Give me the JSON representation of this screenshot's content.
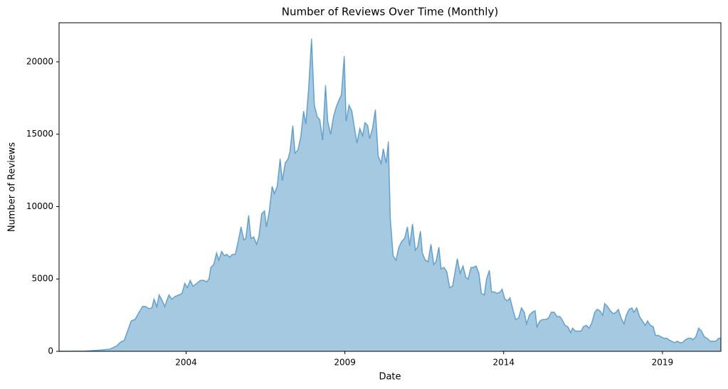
{
  "chart_data": {
    "type": "area",
    "title": "Number of Reviews Over Time (Monthly)",
    "x_label": "Date",
    "y_label": "Number of Reviews",
    "color": "#1f77b4",
    "x": [
      2000.0,
      2000.82,
      2001.26,
      2001.6,
      2001.83,
      2001.94,
      2002.05,
      2002.27,
      2002.39,
      2002.52,
      2002.63,
      2002.72,
      2002.83,
      2002.92,
      2002.99,
      2003.08,
      2003.15,
      2003.24,
      2003.33,
      2003.39,
      2003.46,
      2003.55,
      2003.66,
      2003.78,
      2003.87,
      2003.96,
      2004.04,
      2004.13,
      2004.22,
      2004.34,
      2004.45,
      2004.56,
      2004.65,
      2004.72,
      2004.78,
      2004.87,
      2004.96,
      2005.03,
      2005.12,
      2005.21,
      2005.28,
      2005.37,
      2005.46,
      2005.55,
      2005.64,
      2005.73,
      2005.82,
      2005.88,
      2005.97,
      2006.04,
      2006.13,
      2006.22,
      2006.29,
      2006.38,
      2006.47,
      2006.53,
      2006.62,
      2006.71,
      2006.78,
      2006.87,
      2006.96,
      2007.03,
      2007.12,
      2007.21,
      2007.27,
      2007.36,
      2007.43,
      2007.52,
      2007.61,
      2007.7,
      2007.77,
      2007.86,
      2007.95,
      2008.04,
      2008.13,
      2008.21,
      2008.3,
      2008.39,
      2008.46,
      2008.55,
      2008.64,
      2008.73,
      2008.82,
      2008.89,
      2008.98,
      2009.04,
      2009.13,
      2009.22,
      2009.29,
      2009.38,
      2009.47,
      2009.56,
      2009.63,
      2009.72,
      2009.78,
      2009.87,
      2009.96,
      2010.05,
      2010.14,
      2010.21,
      2010.3,
      2010.37,
      2010.43,
      2010.52,
      2010.61,
      2010.7,
      2010.79,
      2010.88,
      2010.97,
      2011.04,
      2011.13,
      2011.22,
      2011.29,
      2011.38,
      2011.44,
      2011.53,
      2011.62,
      2011.71,
      2011.8,
      2011.87,
      2011.96,
      2012.03,
      2012.12,
      2012.21,
      2012.3,
      2012.39,
      2012.47,
      2012.54,
      2012.63,
      2012.72,
      2012.81,
      2012.88,
      2012.97,
      2013.06,
      2013.13,
      2013.22,
      2013.3,
      2013.39,
      2013.46,
      2013.55,
      2013.62,
      2013.71,
      2013.8,
      2013.89,
      2013.95,
      2014.04,
      2014.13,
      2014.2,
      2014.29,
      2014.38,
      2014.47,
      2014.56,
      2014.65,
      2014.72,
      2014.81,
      2014.9,
      2014.99,
      2015.05,
      2015.14,
      2015.23,
      2015.32,
      2015.41,
      2015.5,
      2015.59,
      2015.68,
      2015.77,
      2015.84,
      2015.93,
      2016.02,
      2016.11,
      2016.17,
      2016.26,
      2016.35,
      2016.44,
      2016.51,
      2016.6,
      2016.69,
      2016.78,
      2016.87,
      2016.94,
      2017.03,
      2017.12,
      2017.18,
      2017.27,
      2017.36,
      2017.45,
      2017.54,
      2017.61,
      2017.7,
      2017.79,
      2017.86,
      2017.95,
      2018.04,
      2018.1,
      2018.19,
      2018.28,
      2018.37,
      2018.46,
      2018.53,
      2018.62,
      2018.71,
      2018.78,
      2018.87,
      2018.96,
      2019.05,
      2019.14,
      2019.2,
      2019.29,
      2019.38,
      2019.47,
      2019.54,
      2019.63,
      2019.72,
      2019.81,
      2019.9,
      2019.96,
      2020.05,
      2020.14,
      2020.23,
      2020.32,
      2020.41,
      2020.5,
      2020.59,
      2020.68,
      2020.77,
      2020.83
    ],
    "values": [
      0,
      20,
      80,
      150,
      400,
      650,
      750,
      2100,
      2200,
      2700,
      3100,
      3100,
      2950,
      3000,
      3600,
      3100,
      3900,
      3550,
      3100,
      3500,
      3900,
      3600,
      3800,
      3900,
      4000,
      4700,
      4400,
      4900,
      4500,
      4700,
      4900,
      4900,
      4800,
      5000,
      5800,
      6000,
      6800,
      6300,
      6900,
      6600,
      6700,
      6500,
      6700,
      6700,
      7600,
      8600,
      7700,
      7800,
      9400,
      7800,
      7900,
      7400,
      7900,
      9500,
      9700,
      8600,
      9700,
      11400,
      10900,
      11400,
      13300,
      11800,
      13000,
      13300,
      13800,
      15600,
      13700,
      13900,
      14800,
      16600,
      15700,
      18200,
      21600,
      17000,
      16200,
      16000,
      14600,
      18400,
      15900,
      15000,
      16200,
      16900,
      17400,
      17700,
      20400,
      15900,
      17000,
      16600,
      15600,
      14400,
      15400,
      14900,
      15800,
      15600,
      14700,
      15400,
      16700,
      13500,
      13000,
      14000,
      13000,
      14500,
      9200,
      6600,
      6300,
      7200,
      7600,
      7800,
      8600,
      7300,
      8800,
      7000,
      7200,
      8300,
      6800,
      6300,
      6200,
      7400,
      6000,
      6200,
      7200,
      5700,
      5800,
      5500,
      4400,
      4500,
      5500,
      6400,
      5400,
      5900,
      5100,
      5000,
      5800,
      5800,
      5900,
      5400,
      4000,
      3900,
      5000,
      5600,
      4100,
      4100,
      4000,
      4100,
      4300,
      3600,
      3500,
      3700,
      2900,
      2200,
      2300,
      3000,
      2700,
      1900,
      2500,
      2700,
      2800,
      1700,
      2100,
      2200,
      2200,
      2300,
      2700,
      2700,
      2400,
      2400,
      2200,
      1800,
      1700,
      1300,
      1600,
      1400,
      1400,
      1400,
      1700,
      1800,
      1600,
      2000,
      2700,
      2900,
      2800,
      2500,
      3300,
      3100,
      2800,
      2600,
      2700,
      2900,
      2300,
      1900,
      2500,
      2900,
      3000,
      2700,
      3000,
      2400,
      2100,
      1800,
      2100,
      1800,
      1700,
      1100,
      1100,
      1000,
      900,
      900,
      800,
      700,
      600,
      700,
      600,
      600,
      800,
      900,
      900,
      800,
      1000,
      1600,
      1400,
      1000,
      900,
      700,
      700,
      700,
      900,
      900
    ],
    "xlim": [
      2000.0,
      2020.84
    ],
    "xticks": [
      2004,
      2009,
      2014,
      2019
    ],
    "ylim": [
      0,
      22700
    ],
    "yticks": [
      0,
      5000,
      10000,
      15000,
      20000
    ]
  }
}
